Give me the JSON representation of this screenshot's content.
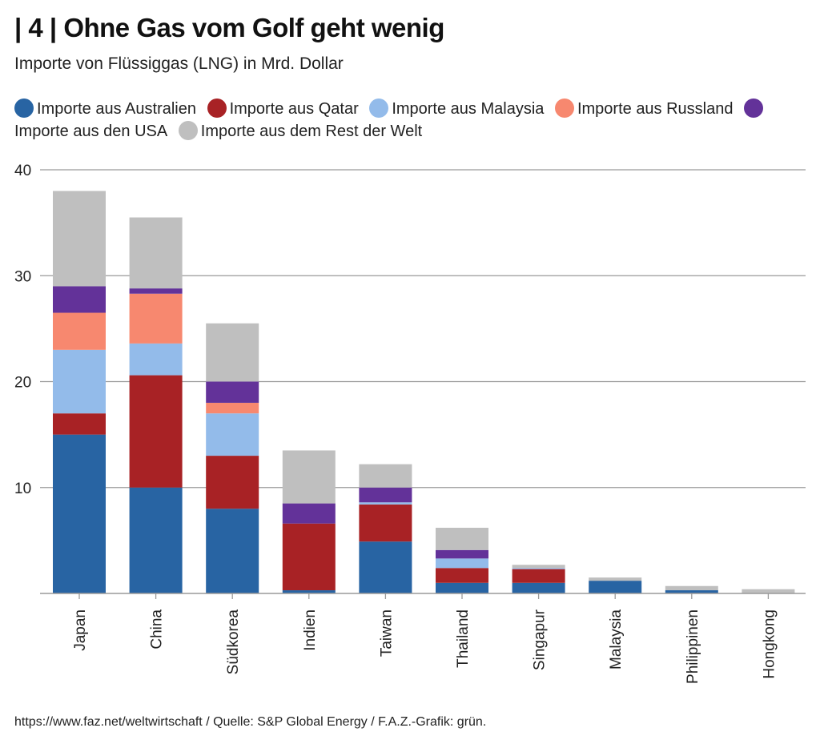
{
  "header": {
    "title": "| 4 | Ohne Gas vom Golf geht wenig",
    "subtitle": "Importe von Flüssiggas (LNG) in Mrd. Dollar"
  },
  "footer": {
    "source": "https://www.faz.net/weltwirtschaft / Quelle: S&P Global Energy / F.A.Z.-Grafik: grün."
  },
  "chart_data": {
    "type": "bar",
    "stacked": true,
    "title": "| 4 | Ohne Gas vom Golf geht wenig",
    "subtitle": "Importe von Flüssiggas (LNG) in Mrd. Dollar",
    "xlabel": "",
    "ylabel": "",
    "ylim": [
      0,
      40
    ],
    "yticks": [
      10,
      20,
      30,
      40
    ],
    "grid": true,
    "legend_position": "top",
    "categories": [
      "Japan",
      "China",
      "Südkorea",
      "Indien",
      "Taiwan",
      "Thailand",
      "Singapur",
      "Malaysia",
      "Philippinen",
      "Hongkong"
    ],
    "series": [
      {
        "name": "Importe aus Australien",
        "color": "#2864a3",
        "values": [
          15.0,
          10.0,
          8.0,
          0.3,
          4.9,
          1.0,
          1.0,
          1.2,
          0.3,
          0.0
        ]
      },
      {
        "name": "Importe aus Qatar",
        "color": "#a82225",
        "values": [
          2.0,
          10.6,
          5.0,
          6.3,
          3.5,
          1.4,
          1.3,
          0.0,
          0.0,
          0.0
        ]
      },
      {
        "name": "Importe aus Malaysia",
        "color": "#93bbea",
        "values": [
          6.0,
          3.0,
          4.0,
          0.0,
          0.2,
          0.9,
          0.1,
          0.0,
          0.0,
          0.0
        ]
      },
      {
        "name": "Importe aus Russland",
        "color": "#f7886f",
        "values": [
          3.5,
          4.7,
          1.0,
          0.0,
          0.0,
          0.0,
          0.0,
          0.0,
          0.0,
          0.0
        ]
      },
      {
        "name": "Importe aus den USA",
        "color": "#633299",
        "values": [
          2.5,
          0.5,
          2.0,
          1.9,
          1.4,
          0.8,
          0.0,
          0.0,
          0.0,
          0.0
        ]
      },
      {
        "name": "Importe aus dem Rest der Welt",
        "color": "#bfbfbf",
        "values": [
          9.0,
          6.7,
          5.5,
          5.0,
          2.2,
          2.1,
          0.3,
          0.3,
          0.4,
          0.4
        ]
      }
    ]
  }
}
